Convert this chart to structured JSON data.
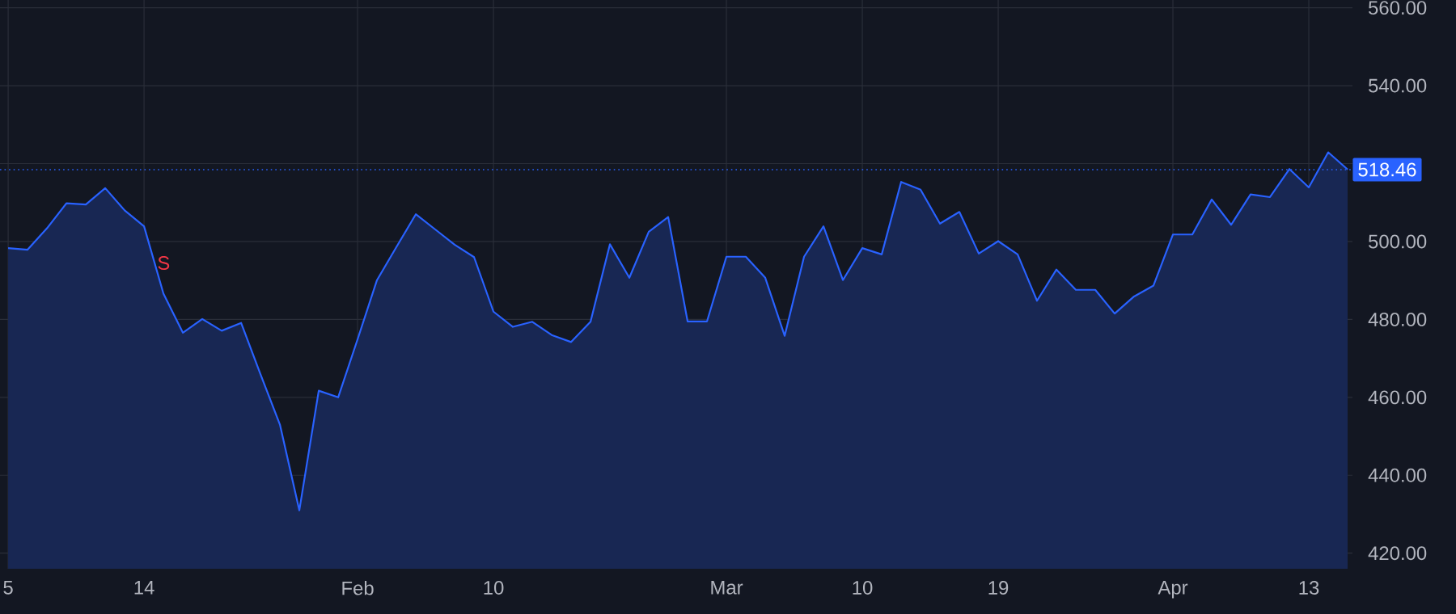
{
  "chart_data": {
    "type": "area",
    "categories": [
      "5",
      null,
      null,
      null,
      null,
      null,
      null,
      "14",
      null,
      null,
      null,
      null,
      null,
      null,
      null,
      null,
      null,
      null,
      "Feb",
      null,
      null,
      null,
      null,
      null,
      null,
      "10",
      null,
      null,
      null,
      null,
      null,
      null,
      null,
      null,
      null,
      null,
      null,
      "Mar",
      null,
      null,
      null,
      null,
      null,
      null,
      "10",
      null,
      null,
      null,
      null,
      null,
      null,
      "19",
      null,
      null,
      null,
      null,
      null,
      null,
      null,
      null,
      "Apr",
      null,
      null,
      null,
      null,
      null,
      null,
      "13",
      null,
      null
    ],
    "series": [
      {
        "color": "#2962ff",
        "values": [
          498.3,
          497.9,
          503.4,
          509.8,
          509.5,
          513.7,
          508.0,
          503.9,
          486.6,
          476.6,
          480.1,
          477.1,
          479.1,
          465.9,
          453.0,
          431.0,
          461.7,
          460.0,
          474.9,
          490.1,
          498.6,
          507.0,
          503.1,
          499.2,
          496.0,
          482.0,
          478.1,
          479.4,
          476.0,
          474.2,
          479.4,
          499.3,
          490.7,
          502.5,
          506.3,
          479.5,
          479.5,
          496.1,
          496.1,
          490.7,
          475.8,
          496.1,
          503.9,
          490.1,
          498.3,
          496.7,
          515.3,
          513.3,
          504.6,
          507.6,
          496.9,
          500.1,
          496.7,
          484.8,
          492.8,
          487.6,
          487.6,
          481.5,
          485.9,
          488.7,
          501.8,
          501.8,
          510.8,
          504.3,
          512.1,
          511.4,
          518.6,
          513.9,
          522.9,
          518.5
        ]
      }
    ],
    "ylim": [
      416,
      562
    ],
    "yticks": [
      {
        "value": 420,
        "label": "420.00"
      },
      {
        "value": 440,
        "label": "440.00"
      },
      {
        "value": 460,
        "label": "460.00"
      },
      {
        "value": 480,
        "label": "480.00"
      },
      {
        "value": 500,
        "label": "500.00"
      },
      {
        "value": 520,
        "label": null
      },
      {
        "value": 540,
        "label": "540.00"
      },
      {
        "value": 560,
        "label": "560.00"
      }
    ],
    "ref_lines": [
      {
        "axis": "y",
        "value": 518.46,
        "label": "518.46",
        "color": "#2962ff",
        "line_style": "dotted"
      }
    ],
    "annotations": [
      "S"
    ],
    "grid": true,
    "legend": false,
    "marker": "none",
    "line_style": "solid"
  }
}
